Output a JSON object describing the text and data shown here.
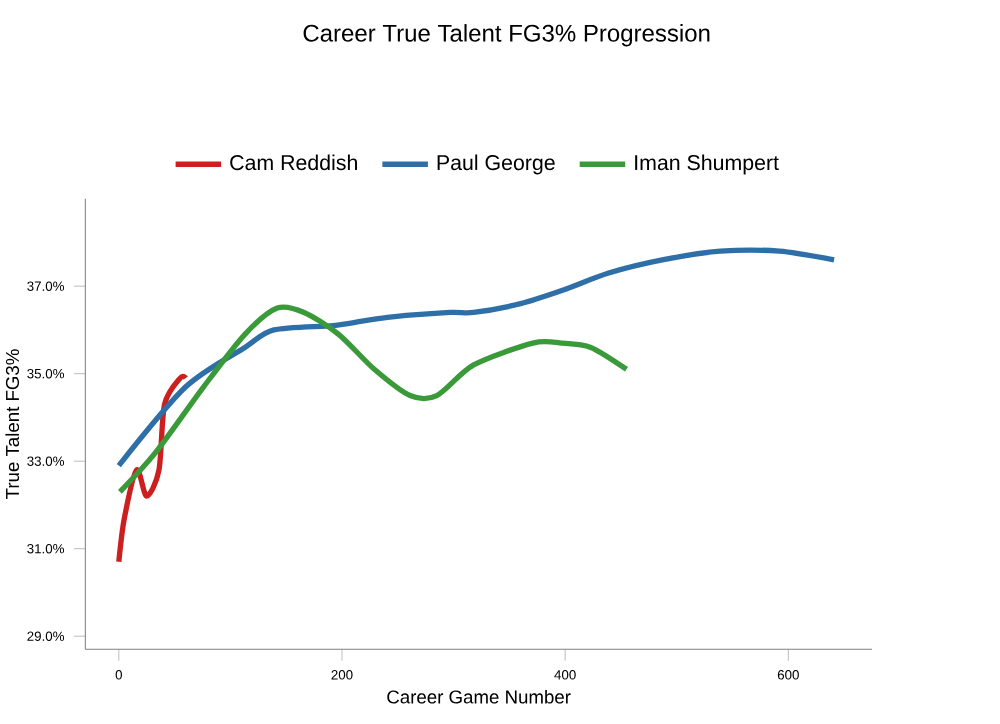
{
  "chart_data": {
    "type": "line",
    "title": "Career True Talent FG3% Progression",
    "xlabel": "Career Game Number",
    "ylabel": "True Talent FG3%",
    "xlim": [
      -30,
      675
    ],
    "ylim": [
      28.7,
      39.0
    ],
    "xticks": [
      0,
      200,
      400,
      600
    ],
    "yticks": [
      {
        "value": 29,
        "label": "29.0%"
      },
      {
        "value": 31,
        "label": "31.0%"
      },
      {
        "value": 33,
        "label": "33.0%"
      },
      {
        "value": 35,
        "label": "35.0%"
      },
      {
        "value": 37,
        "label": "37.0%"
      }
    ],
    "grid": false,
    "legend": "top",
    "marker": "none",
    "line_style": "solid",
    "series": [
      {
        "name": "Cam Reddish",
        "color": "#cc1f1f",
        "x": [
          0,
          5,
          16,
          25,
          36,
          41,
          55,
          60
        ],
        "values": [
          30.7,
          31.7,
          32.8,
          32.2,
          32.8,
          34.3,
          34.9,
          34.9
        ]
      },
      {
        "name": "Paul George",
        "color": "#2f6fa8",
        "x": [
          0,
          60,
          113,
          139,
          192,
          218,
          245,
          297,
          318,
          360,
          397,
          439,
          487,
          539,
          592,
          641
        ],
        "values": [
          32.9,
          34.7,
          35.6,
          36.0,
          36.1,
          36.2,
          36.3,
          36.4,
          36.4,
          36.6,
          36.9,
          37.3,
          37.6,
          37.8,
          37.8,
          37.6
        ]
      },
      {
        "name": "Iman Shumpert",
        "color": "#3a9a3a",
        "x": [
          1,
          33,
          76,
          113,
          142,
          166,
          197,
          229,
          261,
          285,
          318,
          371,
          397,
          423,
          455
        ],
        "values": [
          32.3,
          33.2,
          34.7,
          35.9,
          36.5,
          36.4,
          35.9,
          35.1,
          34.5,
          34.5,
          35.2,
          35.7,
          35.7,
          35.6,
          35.1
        ]
      }
    ]
  }
}
